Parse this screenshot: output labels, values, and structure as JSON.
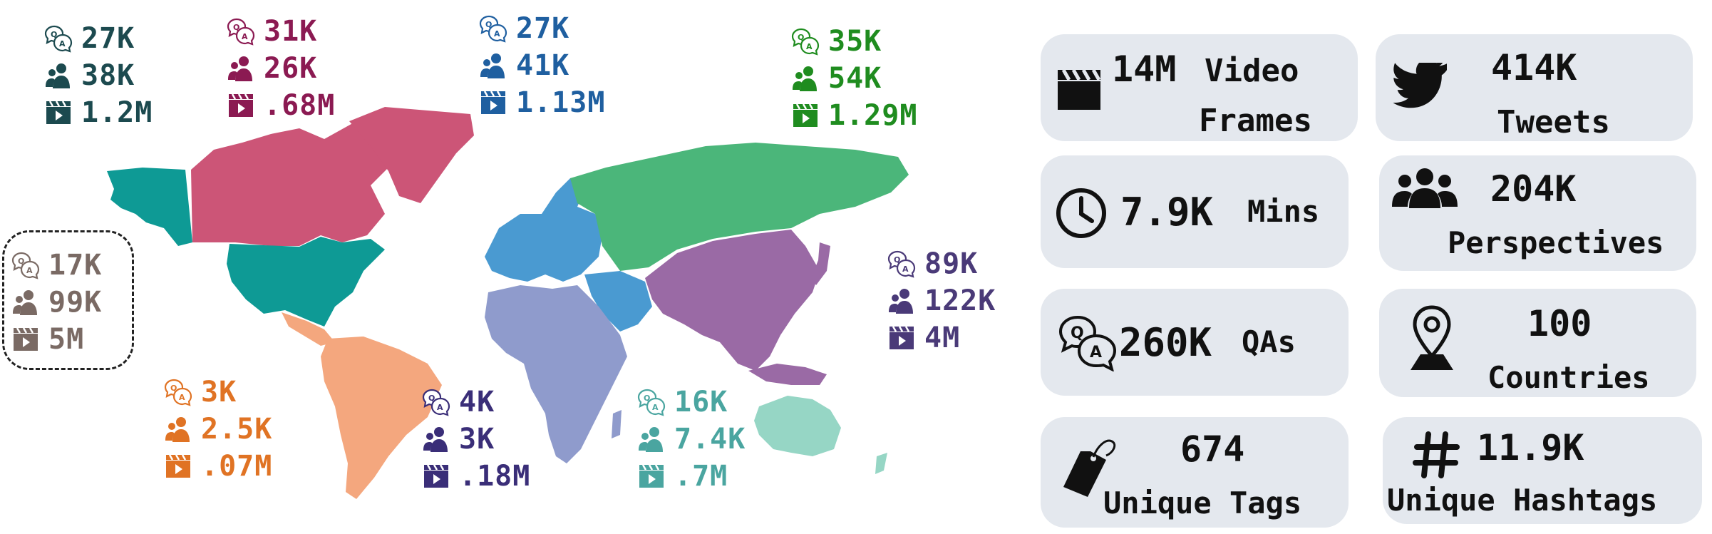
{
  "colors": {
    "north_america_teal": "#0e9a95",
    "canada_pink": "#cc5577",
    "south_america": "#f4a77e",
    "europe": "#4a9ad1",
    "russia": "#4bb67a",
    "asia": "#9a6aa5",
    "africa": "#8f9bcc",
    "australia": "#96d6c5",
    "card_bg": "#e4e8ee"
  },
  "regions": [
    {
      "id": "na-west",
      "color": "#1c4a4f",
      "qa": "27K",
      "people": "38K",
      "frames": "1.2M"
    },
    {
      "id": "na-north",
      "color": "#8b1a52",
      "qa": "31K",
      "people": "26K",
      "frames": ".68M"
    },
    {
      "id": "europe",
      "color": "#1f5fa0",
      "qa": "27K",
      "people": "41K",
      "frames": "1.13M"
    },
    {
      "id": "russia",
      "color": "#1f8c1f",
      "qa": "35K",
      "people": "54K",
      "frames": "1.29M"
    },
    {
      "id": "outlined",
      "color": "#7a6a64",
      "qa": "17K",
      "people": "99K",
      "frames": "5M"
    },
    {
      "id": "asia",
      "color": "#4a3a78",
      "qa": "89K",
      "people": "122K",
      "frames": "4M"
    },
    {
      "id": "south-america",
      "color": "#e07324",
      "qa": "3K",
      "people": "2.5K",
      "frames": ".07M"
    },
    {
      "id": "africa",
      "color": "#3a2e78",
      "qa": "4K",
      "people": "3K",
      "frames": ".18M"
    },
    {
      "id": "oceania",
      "color": "#4aa5a0",
      "qa": "16K",
      "people": "7.4K",
      "frames": ".7M"
    }
  ],
  "cards": {
    "video_frames": {
      "value": "14M",
      "label1": "Video",
      "label2": "Frames",
      "icon": "clapperboard-icon"
    },
    "tweets": {
      "value": "414K",
      "label": "Tweets",
      "icon": "twitter-bird-icon"
    },
    "minutes": {
      "value": "7.9K",
      "label": "Mins",
      "icon": "clock-icon"
    },
    "perspectives": {
      "value": "204K",
      "label": "Perspectives",
      "icon": "people-group-icon"
    },
    "qas": {
      "value": "260K",
      "label": "QAs",
      "icon": "qa-bubbles-icon"
    },
    "countries": {
      "value": "100",
      "label": "Countries",
      "icon": "location-pin-icon"
    },
    "tags": {
      "value": "674",
      "label": "Unique Tags",
      "icon": "tag-icon"
    },
    "hashtags": {
      "value": "11.9K",
      "label": "Unique Hashtags",
      "icon": "hashtag-icon"
    }
  }
}
